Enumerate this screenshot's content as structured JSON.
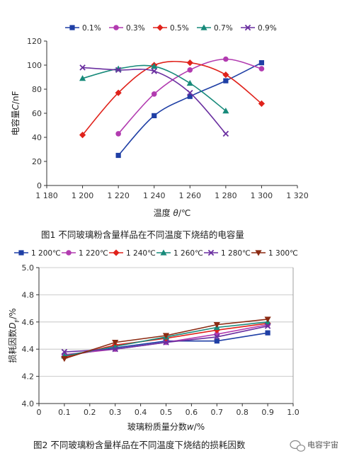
{
  "chart_data": [
    {
      "type": "line",
      "caption": "图1 不同玻璃粉含量样品在不同温度下烧结的电容量",
      "xlabel_prefix": "温度 ",
      "xlabel_var": "θ",
      "xlabel_suffix": "/℃",
      "ylabel_prefix": "电容量",
      "ylabel_var": "C",
      "ylabel_suffix": "/nF",
      "xlim": [
        1180,
        1320
      ],
      "ylim": [
        0,
        120
      ],
      "xticks": [
        1180,
        1200,
        1220,
        1240,
        1260,
        1280,
        1300,
        1320
      ],
      "xtick_labels": [
        "1 180",
        "1 200",
        "1 220",
        "1 240",
        "1 260",
        "1 280",
        "1 300",
        "1 320"
      ],
      "yticks": [
        0,
        20,
        40,
        60,
        80,
        100,
        120
      ],
      "ytick_labels": [
        "0",
        "20",
        "40",
        "60",
        "80",
        "100",
        "120"
      ],
      "grid": false,
      "legend_placement": "top",
      "series": [
        {
          "name": "0.1%",
          "color": "#1f3fa5",
          "marker": "square",
          "points": [
            [
              1220,
              25
            ],
            [
              1240,
              58
            ],
            [
              1260,
              74
            ],
            [
              1280,
              87
            ],
            [
              1300,
              102
            ]
          ]
        },
        {
          "name": "0.3%",
          "color": "#b23bb0",
          "marker": "circle",
          "points": [
            [
              1220,
              43
            ],
            [
              1240,
              76
            ],
            [
              1260,
              96
            ],
            [
              1280,
              105
            ],
            [
              1300,
              97
            ]
          ]
        },
        {
          "name": "0.5%",
          "color": "#e0221b",
          "marker": "diamond",
          "points": [
            [
              1200,
              42
            ],
            [
              1220,
              77
            ],
            [
              1240,
              100
            ],
            [
              1260,
              102
            ],
            [
              1280,
              92
            ],
            [
              1300,
              68
            ]
          ]
        },
        {
          "name": "0.7%",
          "color": "#178a7a",
          "marker": "triangle",
          "points": [
            [
              1200,
              89
            ],
            [
              1220,
              97
            ],
            [
              1240,
              99
            ],
            [
              1260,
              85
            ],
            [
              1280,
              62
            ]
          ]
        },
        {
          "name": "0.9%",
          "color": "#6a2fa0",
          "marker": "x",
          "points": [
            [
              1200,
              98
            ],
            [
              1220,
              96
            ],
            [
              1240,
              95
            ],
            [
              1260,
              77
            ],
            [
              1280,
              43
            ]
          ]
        }
      ]
    },
    {
      "type": "line",
      "caption": "图2 不同玻璃粉含量样品在不同温度下烧结的损耗因数",
      "xlabel_prefix": "玻璃粉质量分数",
      "xlabel_var": "w",
      "xlabel_suffix": "/%",
      "ylabel_prefix": "损耗因数",
      "ylabel_var": "D",
      "ylabel_sub": "F",
      "ylabel_suffix": "/%",
      "xlim": [
        0,
        1.0
      ],
      "ylim": [
        4.0,
        5.0
      ],
      "xticks": [
        0,
        0.1,
        0.2,
        0.3,
        0.4,
        0.5,
        0.6,
        0.7,
        0.8,
        0.9,
        1.0
      ],
      "xtick_labels": [
        "0",
        "0.1",
        "0.2",
        "0.3",
        "0.4",
        "0.5",
        "0.6",
        "0.7",
        "0.8",
        "0.9",
        "1.0"
      ],
      "yticks": [
        4.0,
        4.2,
        4.4,
        4.6,
        4.8,
        5.0
      ],
      "ytick_labels": [
        "4.0",
        "4.2",
        "4.4",
        "4.6",
        "4.8",
        "5.0"
      ],
      "grid": true,
      "legend_placement": "top",
      "series": [
        {
          "name": "1 200℃",
          "color": "#1f3fa5",
          "marker": "square",
          "points": [
            [
              0.1,
              4.35
            ],
            [
              0.3,
              4.41
            ],
            [
              0.5,
              4.46
            ],
            [
              0.7,
              4.46
            ],
            [
              0.9,
              4.52
            ]
          ]
        },
        {
          "name": "1 220℃",
          "color": "#b23bb0",
          "marker": "circle",
          "points": [
            [
              0.1,
              4.36
            ],
            [
              0.3,
              4.4
            ],
            [
              0.5,
              4.45
            ],
            [
              0.7,
              4.51
            ],
            [
              0.9,
              4.58
            ]
          ]
        },
        {
          "name": "1 240℃",
          "color": "#e0221b",
          "marker": "diamond",
          "points": [
            [
              0.1,
              4.34
            ],
            [
              0.3,
              4.43
            ],
            [
              0.5,
              4.48
            ],
            [
              0.7,
              4.54
            ],
            [
              0.9,
              4.59
            ]
          ]
        },
        {
          "name": "1 260℃",
          "color": "#178a7a",
          "marker": "triangle",
          "points": [
            [
              0.1,
              4.35
            ],
            [
              0.3,
              4.42
            ],
            [
              0.5,
              4.49
            ],
            [
              0.7,
              4.56
            ],
            [
              0.9,
              4.6
            ]
          ]
        },
        {
          "name": "1 280℃",
          "color": "#6a2fa0",
          "marker": "x",
          "points": [
            [
              0.1,
              4.38
            ],
            [
              0.3,
              4.4
            ],
            [
              0.5,
              4.45
            ],
            [
              0.7,
              4.49
            ],
            [
              0.9,
              4.57
            ]
          ]
        },
        {
          "name": "1 300℃",
          "color": "#8b2a12",
          "marker": "triangle-down",
          "points": [
            [
              0.1,
              4.33
            ],
            [
              0.3,
              4.45
            ],
            [
              0.5,
              4.5
            ],
            [
              0.7,
              4.58
            ],
            [
              0.9,
              4.62
            ]
          ]
        }
      ]
    }
  ],
  "watermark": {
    "text": "电容宇宙",
    "icon": "wechat-bubble-icon"
  }
}
